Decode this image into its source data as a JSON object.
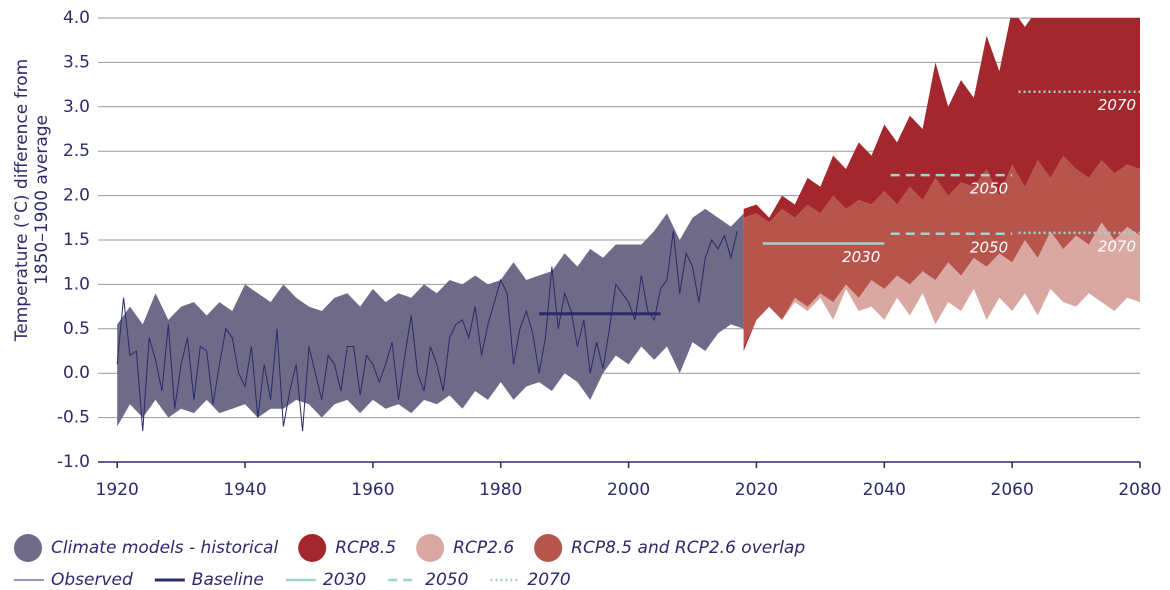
{
  "chart_data": {
    "type": "area",
    "y_label": [
      "Temperature (°C) difference from",
      "1850–1900 average"
    ],
    "xlim": [
      1917,
      2080
    ],
    "xticks": [
      1920,
      1940,
      1960,
      1980,
      2000,
      2020,
      2040,
      2060,
      2080
    ],
    "ylim": [
      -1,
      4
    ],
    "yticks": [
      {
        "value": -1,
        "label": "-1.0"
      },
      -0.5,
      {
        "value": 0,
        "label": "0.0"
      },
      0.5,
      {
        "value": 1,
        "label": "1.0"
      },
      1.5,
      {
        "value": 2,
        "label": "2.0"
      },
      2.5,
      {
        "value": 3,
        "label": "3.0"
      },
      3.5,
      {
        "value": 4,
        "label": "4.0"
      }
    ],
    "grid": true,
    "bands": [
      {
        "name": "Climate models - historical",
        "color": "#6e6a88",
        "x": [
          1920,
          1922,
          1924,
          1926,
          1928,
          1930,
          1932,
          1934,
          1936,
          1938,
          1940,
          1942,
          1944,
          1946,
          1948,
          1950,
          1952,
          1954,
          1956,
          1958,
          1960,
          1962,
          1964,
          1966,
          1968,
          1970,
          1972,
          1974,
          1976,
          1978,
          1980,
          1982,
          1984,
          1986,
          1988,
          1990,
          1992,
          1994,
          1996,
          1998,
          2000,
          2002,
          2004,
          2006,
          2008,
          2010,
          2012,
          2014,
          2016,
          2018
        ],
        "upper": [
          0.55,
          0.75,
          0.55,
          0.9,
          0.6,
          0.75,
          0.8,
          0.65,
          0.8,
          0.7,
          1.0,
          0.9,
          0.8,
          1.0,
          0.85,
          0.75,
          0.7,
          0.85,
          0.9,
          0.75,
          0.95,
          0.8,
          0.9,
          0.85,
          1.0,
          0.9,
          1.05,
          1.0,
          1.1,
          1.0,
          1.05,
          1.25,
          1.05,
          1.1,
          1.15,
          1.35,
          1.2,
          1.4,
          1.3,
          1.45,
          1.45,
          1.45,
          1.6,
          1.8,
          1.5,
          1.75,
          1.85,
          1.75,
          1.65,
          1.8
        ],
        "lower": [
          -0.6,
          -0.35,
          -0.5,
          -0.3,
          -0.5,
          -0.4,
          -0.45,
          -0.3,
          -0.45,
          -0.4,
          -0.35,
          -0.5,
          -0.4,
          -0.4,
          -0.3,
          -0.35,
          -0.5,
          -0.35,
          -0.3,
          -0.45,
          -0.3,
          -0.4,
          -0.35,
          -0.45,
          -0.3,
          -0.35,
          -0.25,
          -0.4,
          -0.2,
          -0.3,
          -0.1,
          -0.3,
          -0.15,
          -0.1,
          -0.2,
          0.0,
          -0.1,
          -0.3,
          0.0,
          0.2,
          0.1,
          0.3,
          0.15,
          0.3,
          0.0,
          0.35,
          0.25,
          0.45,
          0.55,
          0.5
        ]
      },
      {
        "name": "RCP8.5",
        "color": "#a3272d",
        "x": [
          2018,
          2020,
          2022,
          2024,
          2026,
          2028,
          2030,
          2032,
          2034,
          2036,
          2038,
          2040,
          2042,
          2044,
          2046,
          2048,
          2050,
          2052,
          2054,
          2056,
          2058,
          2060,
          2062,
          2064,
          2066,
          2068,
          2070,
          2072,
          2074,
          2076,
          2078,
          2080
        ],
        "upper": [
          1.85,
          1.9,
          1.75,
          2.0,
          1.9,
          2.2,
          2.1,
          2.45,
          2.3,
          2.6,
          2.45,
          2.8,
          2.6,
          2.9,
          2.75,
          3.5,
          3.0,
          3.3,
          3.1,
          3.8,
          3.4,
          4.1,
          3.9,
          4.1,
          4.1,
          4.1,
          4.1,
          4.1,
          4.1,
          4.1,
          4.1,
          4.1
        ],
        "lower": [
          0.25,
          0.6,
          0.75,
          0.6,
          0.85,
          0.75,
          0.9,
          0.8,
          1.0,
          0.85,
          1.05,
          0.95,
          1.1,
          1.0,
          1.15,
          1.05,
          1.25,
          1.1,
          1.3,
          1.2,
          1.35,
          1.25,
          1.5,
          1.3,
          1.6,
          1.4,
          1.55,
          1.45,
          1.7,
          1.5,
          1.65,
          1.55
        ]
      },
      {
        "name": "RCP2.6",
        "color": "#d9a8a2",
        "x": [
          2018,
          2020,
          2022,
          2024,
          2026,
          2028,
          2030,
          2032,
          2034,
          2036,
          2038,
          2040,
          2042,
          2044,
          2046,
          2048,
          2050,
          2052,
          2054,
          2056,
          2058,
          2060,
          2062,
          2064,
          2066,
          2068,
          2070,
          2072,
          2074,
          2076,
          2078,
          2080
        ],
        "upper": [
          1.75,
          1.8,
          1.7,
          1.85,
          1.75,
          1.9,
          1.8,
          2.0,
          1.85,
          1.95,
          1.9,
          2.05,
          1.9,
          2.1,
          1.95,
          2.2,
          2.0,
          2.15,
          2.1,
          2.3,
          2.0,
          2.35,
          2.1,
          2.4,
          2.2,
          2.45,
          2.3,
          2.2,
          2.4,
          2.25,
          2.35,
          2.3
        ],
        "lower": [
          0.3,
          0.6,
          0.75,
          0.6,
          0.8,
          0.7,
          0.85,
          0.6,
          0.95,
          0.7,
          0.75,
          0.6,
          0.85,
          0.65,
          0.9,
          0.55,
          0.8,
          0.7,
          0.95,
          0.6,
          0.85,
          0.7,
          0.9,
          0.65,
          0.95,
          0.8,
          0.75,
          0.9,
          0.8,
          0.7,
          0.85,
          0.8
        ]
      },
      {
        "name": "RCP8.5 and RCP2.6 overlap",
        "color": "#b7544b",
        "x": [
          2018,
          2020,
          2022,
          2024,
          2026,
          2028,
          2030,
          2032,
          2034,
          2036,
          2038,
          2040,
          2042,
          2044,
          2046,
          2048,
          2050,
          2052,
          2054,
          2056,
          2058,
          2060,
          2062,
          2064,
          2066,
          2068,
          2070,
          2072,
          2074,
          2076,
          2078,
          2080
        ],
        "upper": [
          1.75,
          1.8,
          1.7,
          1.85,
          1.75,
          1.9,
          1.8,
          2.0,
          1.85,
          1.95,
          1.9,
          2.05,
          1.9,
          2.1,
          1.95,
          2.2,
          2.0,
          2.15,
          2.1,
          2.3,
          2.0,
          2.35,
          2.1,
          2.4,
          2.2,
          2.45,
          2.3,
          2.2,
          2.4,
          2.25,
          2.35,
          2.3
        ],
        "lower": [
          0.3,
          0.6,
          0.75,
          0.6,
          0.85,
          0.75,
          0.9,
          0.8,
          1.0,
          0.85,
          1.05,
          0.95,
          1.1,
          1.0,
          1.15,
          1.05,
          1.25,
          1.1,
          1.3,
          1.2,
          1.35,
          1.25,
          1.5,
          1.3,
          1.6,
          1.4,
          1.55,
          1.45,
          1.7,
          1.5,
          1.65,
          1.55
        ]
      }
    ],
    "lines": [
      {
        "name": "Observed",
        "color": "#2b2a6b",
        "width": 1,
        "x": [
          1920,
          1921,
          1922,
          1923,
          1924,
          1925,
          1926,
          1927,
          1928,
          1929,
          1930,
          1931,
          1932,
          1933,
          1934,
          1935,
          1936,
          1937,
          1938,
          1939,
          1940,
          1941,
          1942,
          1943,
          1944,
          1945,
          1946,
          1947,
          1948,
          1949,
          1950,
          1951,
          1952,
          1953,
          1954,
          1955,
          1956,
          1957,
          1958,
          1959,
          1960,
          1961,
          1962,
          1963,
          1964,
          1965,
          1966,
          1967,
          1968,
          1969,
          1970,
          1971,
          1972,
          1973,
          1974,
          1975,
          1976,
          1977,
          1978,
          1979,
          1980,
          1981,
          1982,
          1983,
          1984,
          1985,
          1986,
          1987,
          1988,
          1989,
          1990,
          1991,
          1992,
          1993,
          1994,
          1995,
          1996,
          1997,
          1998,
          1999,
          2000,
          2001,
          2002,
          2003,
          2004,
          2005,
          2006,
          2007,
          2008,
          2009,
          2010,
          2011,
          2012,
          2013,
          2014,
          2015,
          2016,
          2017
        ],
        "values": [
          0.1,
          0.85,
          0.2,
          0.25,
          -0.65,
          0.4,
          0.15,
          -0.2,
          0.55,
          -0.4,
          0.1,
          0.4,
          -0.3,
          0.3,
          0.25,
          -0.35,
          0.1,
          0.5,
          0.4,
          0.0,
          -0.15,
          0.3,
          -0.5,
          0.1,
          -0.3,
          0.5,
          -0.6,
          -0.2,
          0.1,
          -0.65,
          0.3,
          0.0,
          -0.3,
          0.2,
          0.1,
          -0.2,
          0.3,
          0.3,
          -0.25,
          0.2,
          0.1,
          -0.1,
          0.1,
          0.35,
          -0.3,
          0.2,
          0.65,
          0.0,
          -0.2,
          0.3,
          0.1,
          -0.2,
          0.4,
          0.55,
          0.6,
          0.4,
          0.75,
          0.2,
          0.55,
          0.8,
          1.05,
          0.9,
          0.1,
          0.5,
          0.7,
          0.45,
          0.0,
          0.4,
          1.2,
          0.5,
          0.9,
          0.7,
          0.3,
          0.6,
          0.0,
          0.35,
          0.05,
          0.5,
          1.0,
          0.9,
          0.8,
          0.6,
          1.1,
          0.7,
          0.6,
          0.95,
          1.05,
          1.6,
          0.9,
          1.35,
          1.2,
          0.8,
          1.3,
          1.5,
          1.4,
          1.55,
          1.3,
          1.6
        ]
      },
      {
        "name": "Baseline",
        "color": "#2b2a6b",
        "width": 3,
        "x": [
          1986,
          2005
        ],
        "values": [
          0.67,
          0.67
        ]
      }
    ],
    "periods": [
      {
        "name": "2030",
        "color": "#9fd4cd",
        "dash": "solid",
        "segments": [
          {
            "x": [
              2021,
              2040
            ],
            "values": [
              1.46,
              1.46
            ],
            "label": "2030"
          }
        ]
      },
      {
        "name": "2050",
        "color": "#9fd4cd",
        "dash": "dashed",
        "segments": [
          {
            "x": [
              2041,
              2060
            ],
            "values": [
              2.23,
              2.23
            ],
            "label": "2050"
          },
          {
            "x": [
              2041,
              2060
            ],
            "values": [
              1.57,
              1.57
            ],
            "label": "2050"
          }
        ]
      },
      {
        "name": "2070",
        "color": "#9fd4cd",
        "dash": "dotted",
        "segments": [
          {
            "x": [
              2061,
              2080
            ],
            "values": [
              3.17,
              3.17
            ],
            "label": "2070"
          },
          {
            "x": [
              2061,
              2080
            ],
            "values": [
              1.58,
              1.58
            ],
            "label": "2070"
          }
        ]
      }
    ]
  }
}
